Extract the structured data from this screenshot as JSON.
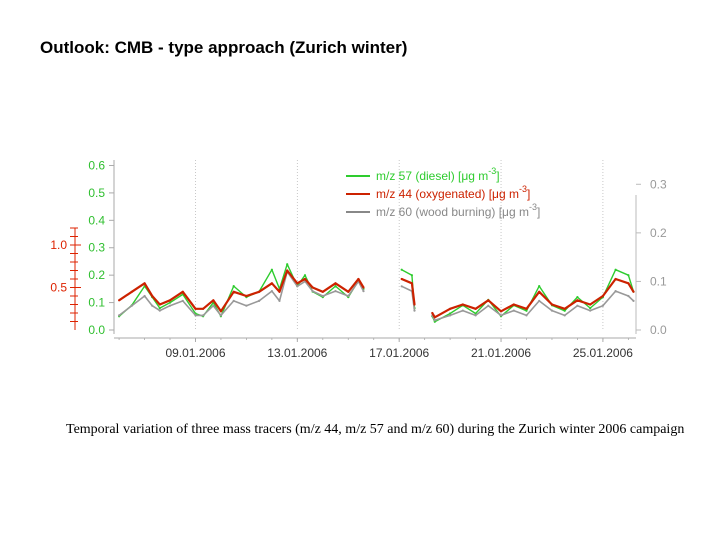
{
  "slide": {
    "title": "Outlook: CMB - type approach (Zurich winter)",
    "caption": "Temporal variation of three mass tracers (m/z 44, m/z 57 and m/z 60) during the Zurich winter 2006 campaign"
  },
  "chart_data": {
    "type": "line",
    "x_tick_labels": [
      "09.01.2006",
      "13.01.2006",
      "17.01.2006",
      "21.01.2006",
      "25.01.2006"
    ],
    "x_ticks_day": [
      9,
      13,
      17,
      21,
      25
    ],
    "xlim_day": [
      5.8,
      26.3
    ],
    "axes": {
      "left_green": {
        "ylim": [
          0,
          0.62
        ],
        "ticks": [
          0.0,
          0.1,
          0.2,
          0.3,
          0.4,
          0.5,
          0.6
        ],
        "tick_labels": [
          "0.0",
          "0.1",
          "0.2",
          "0.3",
          "0.4",
          "0.5",
          "0.6"
        ],
        "color": "#2ecc2e"
      },
      "left_red": {
        "ylim": [
          0,
          2.0
        ],
        "ticks": [
          0.5,
          1.0
        ],
        "tick_labels": [
          "0.5",
          "1.0"
        ],
        "color": "#dd2200"
      },
      "right_gray": {
        "ylim": [
          0,
          0.35
        ],
        "ticks": [
          0.0,
          0.1,
          0.2,
          0.3
        ],
        "tick_labels": [
          "0.0",
          "0.1",
          "0.2",
          "0.3"
        ],
        "color": "#999999"
      }
    },
    "legend": {
      "placement": "top-right",
      "entries": [
        {
          "text": "m/z 57 (diesel) [μg m",
          "sup": "-3",
          "end": "]",
          "color": "#2ecc2e"
        },
        {
          "text": "m/z 44 (oxygenated) [μg m",
          "sup": "-3",
          "end": "]",
          "color": "#cc2200"
        },
        {
          "text": "m/z 60 (wood burning) [μg m",
          "sup": "-3",
          "end": "]",
          "color": "#888888"
        }
      ]
    },
    "series": [
      {
        "name": "m/z 57 (diesel)",
        "axis": "left_green",
        "color": "#2ecc2e",
        "x_day": [
          6.0,
          6.5,
          7.0,
          7.3,
          7.6,
          8.0,
          8.5,
          9.0,
          9.3,
          9.7,
          10.0,
          10.5,
          11.0,
          11.5,
          12.0,
          12.3,
          12.6,
          13.0,
          13.3,
          13.6,
          14.0,
          14.5,
          15.0,
          15.4,
          15.6,
          16.0,
          17.0,
          17.1,
          17.5,
          17.6,
          18.0,
          18.15,
          18.3,
          18.4,
          19.0,
          19.5,
          20.0,
          20.5,
          21.0,
          21.5,
          22.0,
          22.5,
          23.0,
          23.5,
          24.0,
          24.5,
          25.0,
          25.5,
          26.0,
          26.2
        ],
        "values": [
          0.05,
          0.09,
          0.16,
          0.12,
          0.08,
          0.1,
          0.13,
          0.06,
          0.05,
          0.1,
          0.05,
          0.16,
          0.12,
          0.14,
          0.22,
          0.15,
          0.24,
          0.16,
          0.2,
          0.14,
          0.12,
          0.16,
          0.12,
          0.18,
          0.15,
          null,
          null,
          0.22,
          0.2,
          0.08,
          null,
          null,
          0.05,
          0.03,
          0.06,
          0.09,
          0.06,
          0.11,
          0.05,
          0.09,
          0.07,
          0.16,
          0.09,
          0.07,
          0.12,
          0.08,
          0.12,
          0.22,
          0.2,
          0.14
        ]
      },
      {
        "name": "m/z 44 (oxygenated)",
        "axis": "left_red",
        "color": "#cc2200",
        "x_day": [
          6.0,
          6.5,
          7.0,
          7.3,
          7.6,
          8.0,
          8.5,
          9.0,
          9.3,
          9.7,
          10.0,
          10.5,
          11.0,
          11.5,
          12.0,
          12.3,
          12.6,
          13.0,
          13.3,
          13.6,
          14.0,
          14.5,
          15.0,
          15.4,
          15.6,
          16.0,
          17.0,
          17.1,
          17.5,
          17.6,
          18.0,
          18.15,
          18.3,
          18.4,
          19.0,
          19.5,
          20.0,
          20.5,
          21.0,
          21.5,
          22.0,
          22.5,
          23.0,
          23.5,
          24.0,
          24.5,
          25.0,
          25.5,
          26.0,
          26.2
        ],
        "values": [
          0.35,
          0.45,
          0.55,
          0.4,
          0.3,
          0.35,
          0.45,
          0.25,
          0.25,
          0.35,
          0.22,
          0.45,
          0.4,
          0.45,
          0.55,
          0.45,
          0.7,
          0.55,
          0.6,
          0.5,
          0.45,
          0.55,
          0.45,
          0.6,
          0.5,
          null,
          null,
          0.6,
          0.55,
          0.3,
          null,
          null,
          0.2,
          0.15,
          0.25,
          0.3,
          0.25,
          0.35,
          0.22,
          0.3,
          0.25,
          0.45,
          0.3,
          0.25,
          0.35,
          0.3,
          0.4,
          0.6,
          0.55,
          0.45
        ]
      },
      {
        "name": "m/z 60 (wood burning)",
        "axis": "right_gray",
        "color": "#999999",
        "x_day": [
          6.0,
          6.5,
          7.0,
          7.3,
          7.6,
          8.0,
          8.5,
          9.0,
          9.3,
          9.7,
          10.0,
          10.5,
          11.0,
          11.5,
          12.0,
          12.3,
          12.6,
          13.0,
          13.3,
          13.6,
          14.0,
          14.5,
          15.0,
          15.4,
          15.6,
          16.0,
          17.0,
          17.1,
          17.5,
          17.6,
          18.0,
          18.15,
          18.3,
          18.4,
          19.0,
          19.5,
          20.0,
          20.5,
          21.0,
          21.5,
          22.0,
          22.5,
          23.0,
          23.5,
          24.0,
          24.5,
          25.0,
          25.5,
          26.0,
          26.2
        ],
        "values": [
          0.03,
          0.05,
          0.07,
          0.05,
          0.04,
          0.05,
          0.06,
          0.03,
          0.03,
          0.05,
          0.03,
          0.06,
          0.05,
          0.06,
          0.08,
          0.06,
          0.12,
          0.09,
          0.1,
          0.08,
          0.07,
          0.08,
          0.07,
          0.1,
          0.08,
          null,
          null,
          0.09,
          0.08,
          0.04,
          null,
          null,
          0.03,
          0.02,
          0.03,
          0.04,
          0.03,
          0.05,
          0.03,
          0.04,
          0.03,
          0.06,
          0.04,
          0.03,
          0.05,
          0.04,
          0.05,
          0.08,
          0.07,
          0.06
        ]
      }
    ]
  }
}
